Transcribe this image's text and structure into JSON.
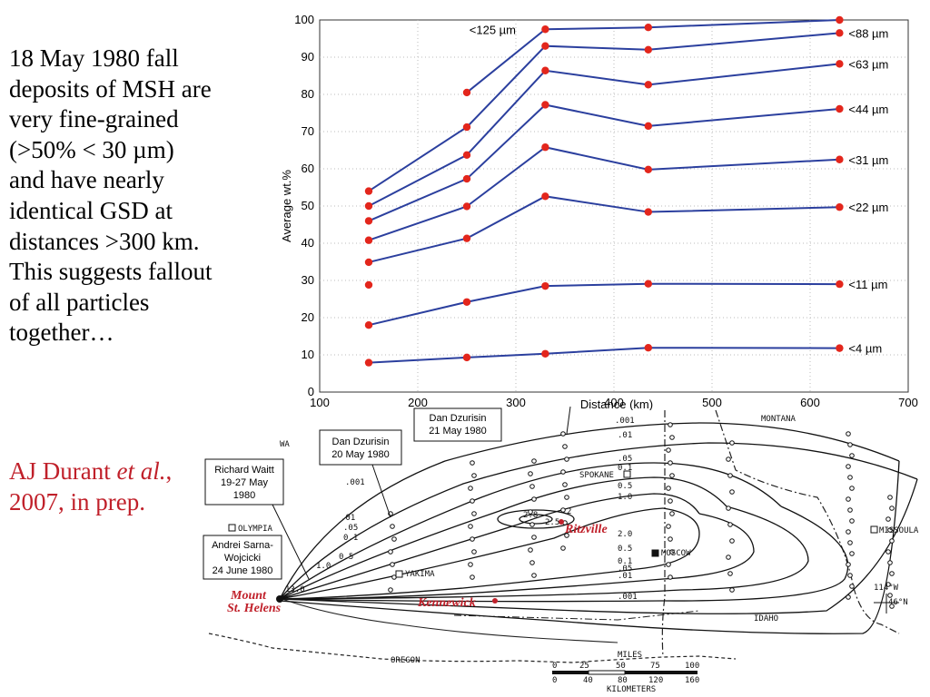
{
  "caption": {
    "text": "18 May 1980 fall\ndeposits of MSH are\nvery fine-grained\n(>50% < 30 µm)\nand have nearly\nidentical GSD at\ndistances >300 km.\nThis suggests fallout\nof all particles\ntogether…"
  },
  "citation": {
    "part1": "AJ Durant ",
    "italic": "et al.",
    "part2": ",\n2007, in prep."
  },
  "colors": {
    "line": "#2b3f9e",
    "marker": "#e3261c",
    "citation": "#c0202a"
  },
  "chart_data": {
    "type": "line",
    "xlabel": "Distance (km)",
    "ylabel": "Average wt.%",
    "xlim": [
      100,
      700
    ],
    "ylim": [
      0,
      100
    ],
    "xticks": [
      100,
      200,
      300,
      400,
      500,
      600,
      700
    ],
    "yticks": [
      0,
      10,
      20,
      30,
      40,
      50,
      60,
      70,
      80,
      90,
      100
    ],
    "grid": true,
    "x": [
      150,
      250,
      330,
      435,
      630
    ],
    "series": [
      {
        "name": "<125 µm",
        "x": [
          250,
          330,
          435,
          630
        ],
        "values": [
          80.5,
          97.5,
          98,
          100
        ]
      },
      {
        "name": "<88 µm",
        "x": [
          150,
          250,
          330,
          435,
          630
        ],
        "values": [
          54,
          71.2,
          93,
          92,
          96.5
        ]
      },
      {
        "name": "<63 µm",
        "x": [
          150,
          250,
          330,
          435,
          630
        ],
        "values": [
          50,
          63.7,
          86.4,
          82.6,
          88.2
        ]
      },
      {
        "name": "<44 µm",
        "x": [
          150,
          250,
          330,
          435,
          630
        ],
        "values": [
          46,
          57.3,
          77.2,
          71.5,
          76.1
        ]
      },
      {
        "name": "<31 µm",
        "x": [
          150,
          250,
          330,
          435,
          630
        ],
        "values": [
          40.8,
          49.9,
          65.8,
          59.8,
          62.5
        ]
      },
      {
        "name": "<22 µm",
        "x": [
          150,
          250,
          330,
          435,
          630
        ],
        "values": [
          34.9,
          41.3,
          52.6,
          48.4,
          49.7
        ]
      },
      {
        "name": "",
        "x": [
          150
        ],
        "values": [
          28.8
        ]
      },
      {
        "name": "<11 µm",
        "x": [
          150,
          250,
          330,
          435,
          630
        ],
        "values": [
          18,
          24.2,
          28.5,
          29.1,
          29
        ]
      },
      {
        "name": "<4 µm",
        "x": [
          150,
          250,
          330,
          435,
          630
        ],
        "values": [
          7.9,
          9.3,
          10.3,
          11.9,
          11.8
        ]
      }
    ]
  },
  "map": {
    "states": [
      "MONTANA",
      "IDAHO",
      "OREGON",
      "WA"
    ],
    "cities": [
      "OLYMPIA",
      "SPOKANE",
      "MOSCOW",
      "MISSOULA",
      "YAKIMA"
    ],
    "highlighted_cities": [
      "Ritzville",
      "Kennewick",
      "Mount",
      "St. Helens"
    ],
    "contour_labels": [
      ".001",
      ".01",
      ".05",
      "0.1",
      "0.5",
      "1.0",
      "2",
      "2.8",
      "2.5",
      "13.0"
    ],
    "contour_labels_east": [
      ".001",
      ".01",
      ".05",
      "0.1",
      "0.5",
      "1.0",
      "2.0",
      "0.5",
      "0.1",
      ".05",
      ".01",
      ".001"
    ],
    "callouts": [
      {
        "lines": [
          "Dan Dzurisin",
          "21 May 1980"
        ]
      },
      {
        "lines": [
          "Dan Dzurisin",
          "20 May 1980"
        ]
      },
      {
        "lines": [
          "Richard Waitt",
          "19-27 May",
          "1980"
        ]
      },
      {
        "lines": [
          "Andrei Sarna-",
          "Wojcicki",
          "24 June 1980"
        ]
      }
    ],
    "coords": [
      "114°W",
      "46°N"
    ],
    "scale": {
      "miles_label": "MILES",
      "miles": [
        "0",
        "25",
        "50",
        "75",
        "100"
      ],
      "km": [
        "0",
        "40",
        "80",
        "120",
        "160"
      ],
      "km_label": "KILOMETERS"
    }
  }
}
